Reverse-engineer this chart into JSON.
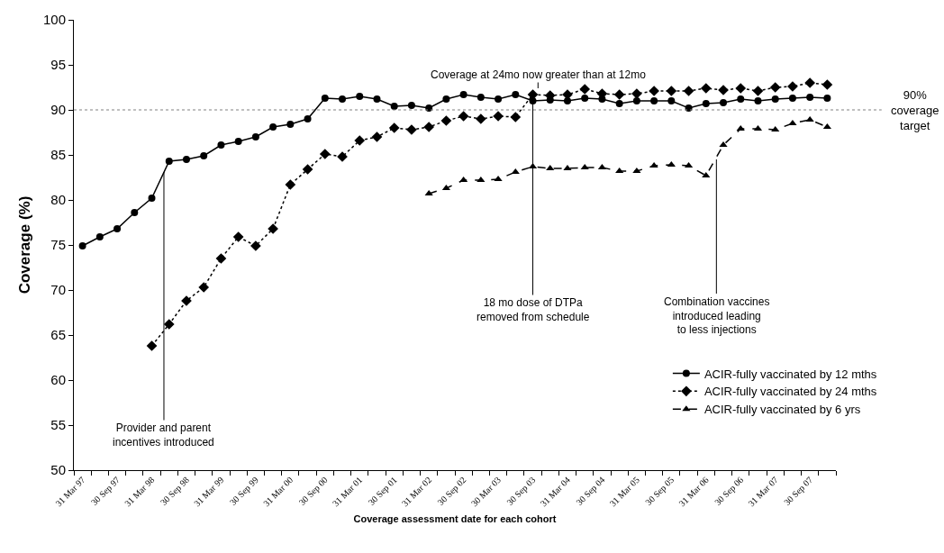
{
  "chart_data": {
    "type": "line",
    "xlabel": "Coverage assessment date for each cohort",
    "ylabel": "Coverage (%)",
    "categories": [
      "31 Mar 97",
      null,
      "30 Sep 97",
      null,
      "31 Mar 98",
      null,
      "30 Sep 98",
      null,
      "31 Mar 99",
      null,
      "30 Sep 99",
      null,
      "31 Mar 00",
      null,
      "30 Sep 00",
      null,
      "31 Mar 01",
      null,
      "30 Sep 01",
      null,
      "31 Mar 02",
      null,
      "30 Sep 02",
      null,
      "30 Mar 03",
      null,
      "30 Sep 03",
      null,
      "31 Mar 04",
      null,
      "30 Sep 04",
      null,
      "31 Mar 05",
      null,
      "30 Sep 05",
      null,
      "31 Mar 06",
      null,
      "30 Sep 06",
      null,
      "31 Mar 07",
      null,
      "30 Sep 07",
      null
    ],
    "series": [
      {
        "name": "ACIR-fully vaccinated by 12 mths",
        "color": "#000000",
        "marker": "circle",
        "line_style": "solid",
        "values": [
          74.9,
          75.9,
          76.8,
          78.6,
          80.2,
          84.3,
          84.5,
          84.9,
          86.1,
          86.5,
          87.0,
          88.1,
          88.4,
          89.0,
          91.3,
          91.2,
          91.5,
          91.2,
          90.4,
          90.5,
          90.2,
          91.2,
          91.7,
          91.4,
          91.2,
          91.7,
          91.0,
          91.1,
          91.0,
          91.3,
          91.2,
          90.7,
          91.0,
          91.0,
          91.0,
          90.2,
          90.7,
          90.8,
          91.2,
          91.0,
          91.2,
          91.3,
          91.4,
          91.3
        ]
      },
      {
        "name": "ACIR-fully vaccinated by 24 mths",
        "color": "#000000",
        "marker": "diamond",
        "line_style": "dotted",
        "values": [
          null,
          null,
          null,
          null,
          63.8,
          66.2,
          68.8,
          70.3,
          73.5,
          75.9,
          74.9,
          76.8,
          81.7,
          83.4,
          85.1,
          84.8,
          86.6,
          87.0,
          88.0,
          87.8,
          88.1,
          88.8,
          89.3,
          89.0,
          89.3,
          89.2,
          91.7,
          91.6,
          91.7,
          92.3,
          91.8,
          91.7,
          91.8,
          92.1,
          92.1,
          92.1,
          92.4,
          92.2,
          92.4,
          92.1,
          92.5,
          92.6,
          93.0,
          92.8
        ]
      },
      {
        "name": "ACIR-fully vaccinated by 6 yrs",
        "color": "#000000",
        "marker": "triangle",
        "line_style": "dashed",
        "values": [
          null,
          null,
          null,
          null,
          null,
          null,
          null,
          null,
          null,
          null,
          null,
          null,
          null,
          null,
          null,
          null,
          null,
          null,
          null,
          null,
          80.7,
          81.3,
          82.2,
          82.2,
          82.3,
          83.1,
          83.7,
          83.5,
          83.5,
          83.6,
          83.6,
          83.2,
          83.2,
          83.8,
          83.9,
          83.8,
          82.7,
          86.1,
          87.9,
          87.9,
          87.8,
          88.5,
          88.9,
          88.1
        ]
      }
    ],
    "ylim": [
      50,
      100
    ],
    "yticks": [
      50,
      55,
      60,
      65,
      70,
      75,
      80,
      85,
      90,
      95,
      100
    ],
    "grid": false,
    "legend": "right",
    "ref_lines": [
      {
        "axis": "y",
        "value": 90,
        "label": "90% coverage target",
        "color": "#808080",
        "line_style": "dotted"
      }
    ],
    "annotations": [
      "Coverage at 24mo now greater than at 12mo",
      {
        "text": "18 mo dose of DTPa\nremoved from schedule",
        "y": 91.0
      },
      {
        "text": "Combination vaccines\nintroduced leading\nto less injections",
        "y": 84.5
      },
      {
        "text": "Provider and parent\nincentives introduced",
        "y": 83.1
      }
    ]
  }
}
